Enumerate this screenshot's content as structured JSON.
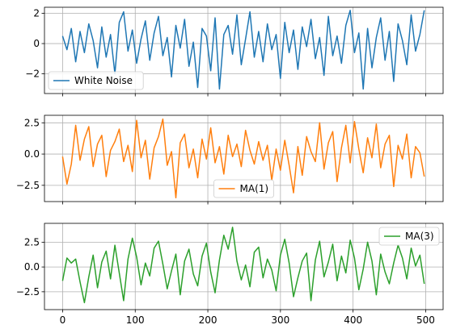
{
  "chart_data": [
    {
      "type": "line",
      "ylim": [
        -3.3,
        2.4
      ],
      "yticks": [
        -2,
        0,
        2
      ],
      "xlim": [
        -25,
        524
      ],
      "xticks": [
        0,
        100,
        200,
        300,
        400,
        500
      ],
      "show_xtick_labels": false,
      "grid": true,
      "legend": "lower-left",
      "series": [
        {
          "name": "White Noise",
          "color": "#1f77b4",
          "x": [
            0,
            6,
            12,
            18,
            24,
            30,
            36,
            42,
            48,
            54,
            60,
            66,
            72,
            78,
            84,
            90,
            96,
            102,
            108,
            114,
            120,
            126,
            132,
            138,
            144,
            150,
            156,
            162,
            168,
            174,
            180,
            186,
            192,
            198,
            204,
            210,
            216,
            222,
            228,
            234,
            240,
            246,
            252,
            258,
            264,
            270,
            276,
            282,
            288,
            294,
            300,
            306,
            312,
            318,
            324,
            330,
            336,
            342,
            348,
            354,
            360,
            366,
            372,
            378,
            384,
            390,
            396,
            402,
            408,
            414,
            420,
            426,
            432,
            438,
            444,
            450,
            456,
            462,
            468,
            474,
            480,
            486,
            492,
            498
          ],
          "y": [
            0.5,
            -0.4,
            1.0,
            -1.2,
            0.8,
            -0.6,
            1.3,
            0.2,
            -1.6,
            1.1,
            -0.9,
            0.6,
            -2.0,
            1.4,
            2.1,
            -0.5,
            0.9,
            -1.3,
            0.3,
            1.5,
            -1.1,
            0.7,
            1.8,
            -0.8,
            0.4,
            -2.2,
            1.2,
            -0.3,
            1.6,
            -1.5,
            0.1,
            -2.9,
            1.0,
            0.5,
            -1.8,
            1.7,
            -3.0,
            0.6,
            1.2,
            -0.7,
            1.9,
            -1.4,
            0.3,
            2.1,
            -0.9,
            0.8,
            -1.2,
            1.3,
            -0.4,
            0.6,
            -2.3,
            1.4,
            -0.6,
            0.9,
            -1.7,
            1.1,
            -0.2,
            1.6,
            -1.0,
            0.4,
            -2.1,
            1.8,
            -0.8,
            0.5,
            -1.3,
            1.2,
            2.2,
            -0.6,
            0.7,
            -3.0,
            1.0,
            -1.6,
            0.4,
            1.7,
            -1.1,
            0.8,
            -2.5,
            1.3,
            0.2,
            -1.4,
            1.9,
            -0.5,
            0.6,
            2.2
          ]
        }
      ]
    },
    {
      "type": "line",
      "ylim": [
        -3.8,
        3.1
      ],
      "yticks": [
        -2.5,
        0.0,
        2.5
      ],
      "xlim": [
        -25,
        524
      ],
      "xticks": [
        0,
        100,
        200,
        300,
        400,
        500
      ],
      "show_xtick_labels": false,
      "grid": true,
      "legend": "lower-center",
      "series": [
        {
          "name": "MA(1)",
          "color": "#ff7f0e",
          "x": [
            0,
            6,
            12,
            18,
            24,
            30,
            36,
            42,
            48,
            54,
            60,
            66,
            72,
            78,
            84,
            90,
            96,
            102,
            108,
            114,
            120,
            126,
            132,
            138,
            144,
            150,
            156,
            162,
            168,
            174,
            180,
            186,
            192,
            198,
            204,
            210,
            216,
            222,
            228,
            234,
            240,
            246,
            252,
            258,
            264,
            270,
            276,
            282,
            288,
            294,
            300,
            306,
            312,
            318,
            324,
            330,
            336,
            342,
            348,
            354,
            360,
            366,
            372,
            378,
            384,
            390,
            396,
            402,
            408,
            414,
            420,
            426,
            432,
            438,
            444,
            450,
            456,
            462,
            468,
            474,
            480,
            486,
            492,
            498
          ],
          "y": [
            -0.2,
            -2.4,
            -0.8,
            2.3,
            -0.5,
            1.2,
            2.2,
            -1.0,
            0.8,
            1.5,
            -1.8,
            0.3,
            1.0,
            2.0,
            -0.6,
            0.7,
            -1.4,
            2.7,
            -0.3,
            1.1,
            -2.0,
            0.5,
            1.4,
            2.8,
            -0.9,
            0.2,
            -3.5,
            0.9,
            1.6,
            -1.1,
            0.4,
            -1.9,
            1.2,
            -0.4,
            2.1,
            -0.7,
            0.6,
            -1.6,
            1.5,
            -0.2,
            0.8,
            -1.0,
            1.9,
            0.3,
            -0.8,
            1.0,
            -0.5,
            0.7,
            -2.1,
            0.4,
            -1.3,
            1.1,
            -0.9,
            -3.1,
            0.6,
            -1.7,
            1.4,
            0.2,
            -0.6,
            2.5,
            -1.2,
            0.9,
            1.8,
            -2.2,
            0.5,
            2.3,
            -0.7,
            2.6,
            0.4,
            -1.5,
            1.3,
            -0.3,
            2.4,
            -1.1,
            0.8,
            1.5,
            -2.6,
            0.7,
            -0.4,
            1.6,
            -1.9,
            0.6,
            0.1,
            -1.8
          ]
        }
      ]
    },
    {
      "type": "line",
      "ylim": [
        -4.3,
        4.4
      ],
      "yticks": [
        -2.5,
        0.0,
        2.5
      ],
      "xlim": [
        -25,
        524
      ],
      "xticks": [
        0,
        100,
        200,
        300,
        400,
        500
      ],
      "show_xtick_labels": true,
      "grid": true,
      "legend": "upper-right",
      "series": [
        {
          "name": "MA(3)",
          "color": "#2ca02c",
          "x": [
            0,
            6,
            12,
            18,
            24,
            30,
            36,
            42,
            48,
            54,
            60,
            66,
            72,
            78,
            84,
            90,
            96,
            102,
            108,
            114,
            120,
            126,
            132,
            138,
            144,
            150,
            156,
            162,
            168,
            174,
            180,
            186,
            192,
            198,
            204,
            210,
            216,
            222,
            228,
            234,
            240,
            246,
            252,
            258,
            264,
            270,
            276,
            282,
            288,
            294,
            300,
            306,
            312,
            318,
            324,
            330,
            336,
            342,
            348,
            354,
            360,
            366,
            372,
            378,
            384,
            390,
            396,
            402,
            408,
            414,
            420,
            426,
            432,
            438,
            444,
            450,
            456,
            462,
            468,
            474,
            480,
            486,
            492,
            498
          ],
          "y": [
            -1.4,
            0.9,
            0.4,
            0.8,
            -1.5,
            -3.6,
            -1.0,
            1.2,
            -2.1,
            0.5,
            1.6,
            -1.2,
            2.2,
            -0.6,
            -3.4,
            0.8,
            2.9,
            1.0,
            -1.8,
            0.4,
            -0.9,
            1.9,
            2.6,
            0.3,
            -2.2,
            -0.4,
            1.3,
            -2.8,
            0.6,
            1.8,
            -0.7,
            -1.9,
            1.1,
            2.4,
            -0.5,
            -2.6,
            0.7,
            3.2,
            1.8,
            4.0,
            0.6,
            -1.3,
            0.2,
            -2.0,
            1.5,
            2.0,
            -1.1,
            0.8,
            -0.3,
            -2.4,
            1.2,
            2.8,
            0.4,
            -3.0,
            -1.1,
            0.6,
            1.4,
            -3.4,
            0.7,
            2.6,
            -1.0,
            0.5,
            2.3,
            -1.4,
            1.1,
            -0.6,
            2.7,
            0.9,
            -2.3,
            -0.2,
            2.5,
            0.6,
            -2.8,
            1.3,
            -0.5,
            -1.7,
            0.4,
            2.2,
            0.9,
            -1.2,
            1.9,
            0.1,
            1.2,
            -1.7
          ]
        }
      ]
    }
  ]
}
